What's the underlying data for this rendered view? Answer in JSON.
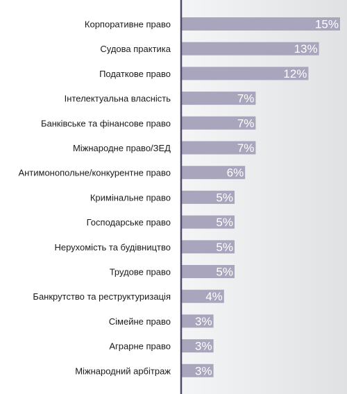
{
  "chart_data": {
    "type": "bar",
    "orientation": "horizontal",
    "categories": [
      "Корпоративне право",
      "Судова практика",
      "Податкове право",
      "Інтелектуальна власність",
      "Банківське та фінансове право",
      "Міжнародне право/ЗЕД",
      "Антимонопольне/конкурентне право",
      "Кримінальне право",
      "Господарське право",
      "Нерухомість та будівництво",
      "Трудове право",
      "Банкрутство та реструктуризація",
      "Сімейне право",
      "Аграрне право",
      "Міжнародний арбітраж"
    ],
    "values": [
      15,
      13,
      12,
      7,
      7,
      7,
      6,
      5,
      5,
      5,
      5,
      4,
      3,
      3,
      3
    ],
    "value_labels": [
      "15%",
      "13%",
      "12%",
      "7%",
      "7%",
      "7%",
      "6%",
      "5%",
      "5%",
      "5%",
      "5%",
      "4%",
      "3%",
      "3%",
      "3%"
    ],
    "xlim": [
      0,
      15
    ],
    "grid": false,
    "legend": "none",
    "colors": {
      "bar": "#a8a5bd",
      "axis": "#4e4a6a",
      "plot_bg_left": "#f4f5f6",
      "plot_bg_right": "#dfe1e3",
      "label_bg": "#ffffff",
      "value_text": "#ffffff",
      "category_text": "#1a1a1a"
    }
  }
}
